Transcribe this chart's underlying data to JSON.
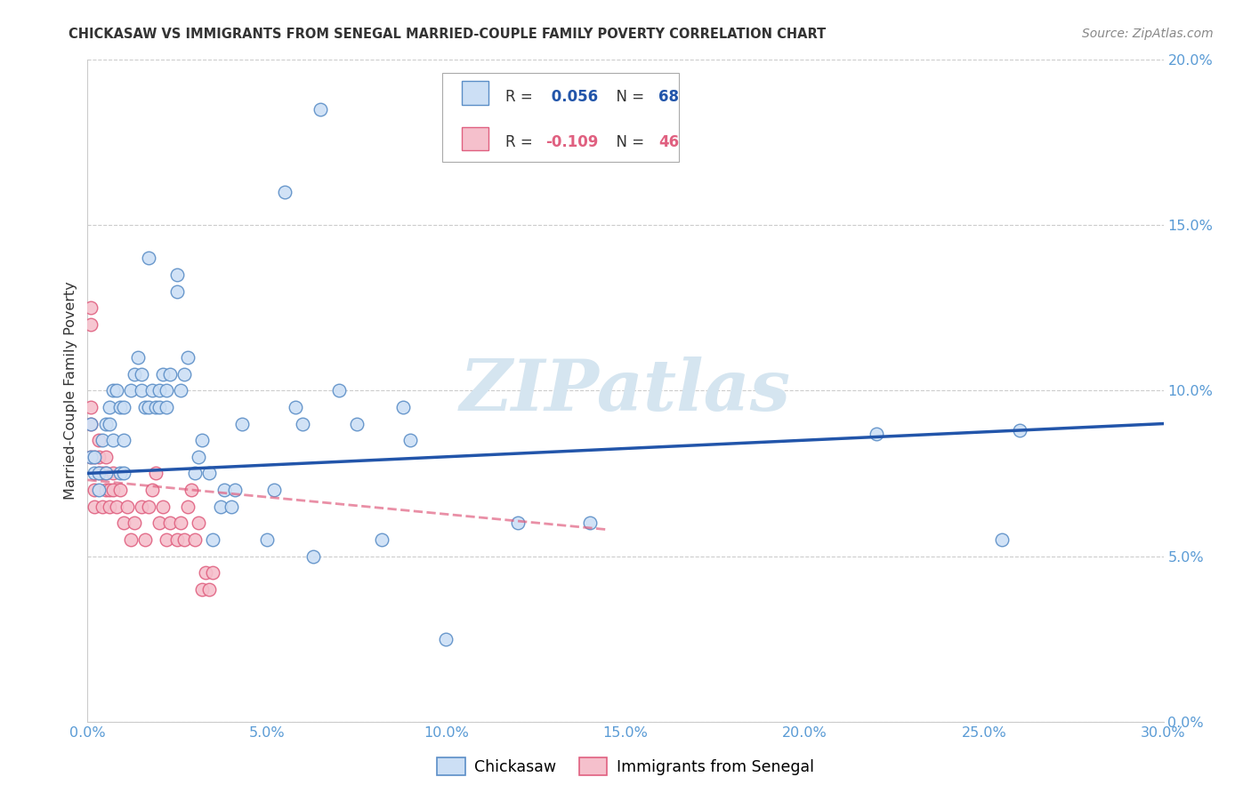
{
  "title": "CHICKASAW VS IMMIGRANTS FROM SENEGAL MARRIED-COUPLE FAMILY POVERTY CORRELATION CHART",
  "source": "Source: ZipAtlas.com",
  "ylabel": "Married-Couple Family Poverty",
  "xlabel_chickasaw": "Chickasaw",
  "xlabel_senegal": "Immigrants from Senegal",
  "xmin": 0.0,
  "xmax": 0.3,
  "ymin": 0.0,
  "ymax": 0.2,
  "color_chickasaw_fill": "#ccdff5",
  "color_chickasaw_edge": "#5b8ec7",
  "color_chickasaw_line": "#2255aa",
  "color_senegal_fill": "#f5c0cc",
  "color_senegal_edge": "#e06080",
  "color_senegal_line": "#e06080",
  "background_color": "#ffffff",
  "watermark_text": "ZIPatlas",
  "watermark_color": "#d5e5f0",
  "grid_color": "#cccccc",
  "tick_color": "#5a9bd5",
  "title_color": "#333333",
  "ylabel_color": "#333333",
  "source_color": "#888888",
  "legend_box_color": "#dddddd",
  "R_color_chickasaw": "#2255aa",
  "N_color_chickasaw": "#2255aa",
  "R_color_senegal": "#e06080",
  "N_color_senegal": "#e06080",
  "chickasaw_x": [
    0.001,
    0.001,
    0.002,
    0.002,
    0.003,
    0.003,
    0.004,
    0.005,
    0.005,
    0.006,
    0.006,
    0.007,
    0.007,
    0.008,
    0.009,
    0.009,
    0.01,
    0.01,
    0.01,
    0.012,
    0.013,
    0.014,
    0.015,
    0.015,
    0.016,
    0.017,
    0.017,
    0.018,
    0.019,
    0.02,
    0.02,
    0.021,
    0.022,
    0.022,
    0.023,
    0.025,
    0.025,
    0.026,
    0.027,
    0.028,
    0.03,
    0.031,
    0.032,
    0.034,
    0.035,
    0.037,
    0.038,
    0.04,
    0.041,
    0.043,
    0.05,
    0.052,
    0.055,
    0.058,
    0.06,
    0.063,
    0.065,
    0.07,
    0.075,
    0.082,
    0.088,
    0.09,
    0.1,
    0.12,
    0.14,
    0.22,
    0.255,
    0.26
  ],
  "chickasaw_y": [
    0.08,
    0.09,
    0.075,
    0.08,
    0.07,
    0.075,
    0.085,
    0.075,
    0.09,
    0.09,
    0.095,
    0.085,
    0.1,
    0.1,
    0.075,
    0.095,
    0.075,
    0.085,
    0.095,
    0.1,
    0.105,
    0.11,
    0.1,
    0.105,
    0.095,
    0.14,
    0.095,
    0.1,
    0.095,
    0.095,
    0.1,
    0.105,
    0.095,
    0.1,
    0.105,
    0.13,
    0.135,
    0.1,
    0.105,
    0.11,
    0.075,
    0.08,
    0.085,
    0.075,
    0.055,
    0.065,
    0.07,
    0.065,
    0.07,
    0.09,
    0.055,
    0.07,
    0.16,
    0.095,
    0.09,
    0.05,
    0.185,
    0.1,
    0.09,
    0.055,
    0.095,
    0.085,
    0.025,
    0.06,
    0.06,
    0.087,
    0.055,
    0.088
  ],
  "senegal_x": [
    0.001,
    0.001,
    0.001,
    0.001,
    0.001,
    0.002,
    0.002,
    0.002,
    0.003,
    0.003,
    0.003,
    0.004,
    0.004,
    0.005,
    0.005,
    0.005,
    0.006,
    0.006,
    0.007,
    0.007,
    0.008,
    0.009,
    0.01,
    0.011,
    0.012,
    0.013,
    0.015,
    0.016,
    0.017,
    0.018,
    0.019,
    0.02,
    0.021,
    0.022,
    0.023,
    0.025,
    0.026,
    0.027,
    0.028,
    0.029,
    0.03,
    0.031,
    0.032,
    0.033,
    0.034,
    0.035
  ],
  "senegal_y": [
    0.12,
    0.125,
    0.08,
    0.09,
    0.095,
    0.065,
    0.07,
    0.08,
    0.075,
    0.08,
    0.085,
    0.065,
    0.075,
    0.07,
    0.075,
    0.08,
    0.065,
    0.07,
    0.07,
    0.075,
    0.065,
    0.07,
    0.06,
    0.065,
    0.055,
    0.06,
    0.065,
    0.055,
    0.065,
    0.07,
    0.075,
    0.06,
    0.065,
    0.055,
    0.06,
    0.055,
    0.06,
    0.055,
    0.065,
    0.07,
    0.055,
    0.06,
    0.04,
    0.045,
    0.04,
    0.045
  ],
  "chick_line_x0": 0.0,
  "chick_line_x1": 0.3,
  "chick_line_y0": 0.075,
  "chick_line_y1": 0.09,
  "sene_line_x0": 0.0,
  "sene_line_x1": 0.145,
  "sene_line_y0": 0.073,
  "sene_line_y1": 0.058
}
